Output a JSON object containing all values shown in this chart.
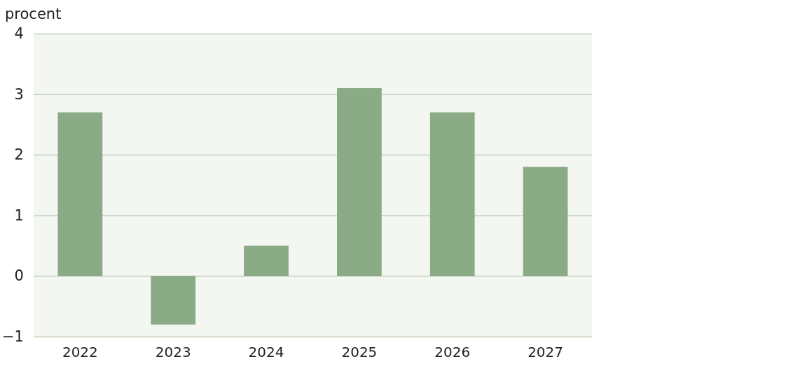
{
  "chart_data": {
    "type": "bar",
    "ylabel": "procent",
    "categories": [
      "2022",
      "2023",
      "2024",
      "2025",
      "2026",
      "2027"
    ],
    "values": [
      2.7,
      -0.8,
      0.5,
      3.1,
      2.7,
      1.8
    ],
    "color": "#8aab86",
    "ylim": [
      -1,
      4
    ],
    "yticks": [
      {
        "value": -1,
        "label": "−1"
      },
      0,
      1,
      2,
      3,
      4
    ],
    "grid": "y"
  }
}
